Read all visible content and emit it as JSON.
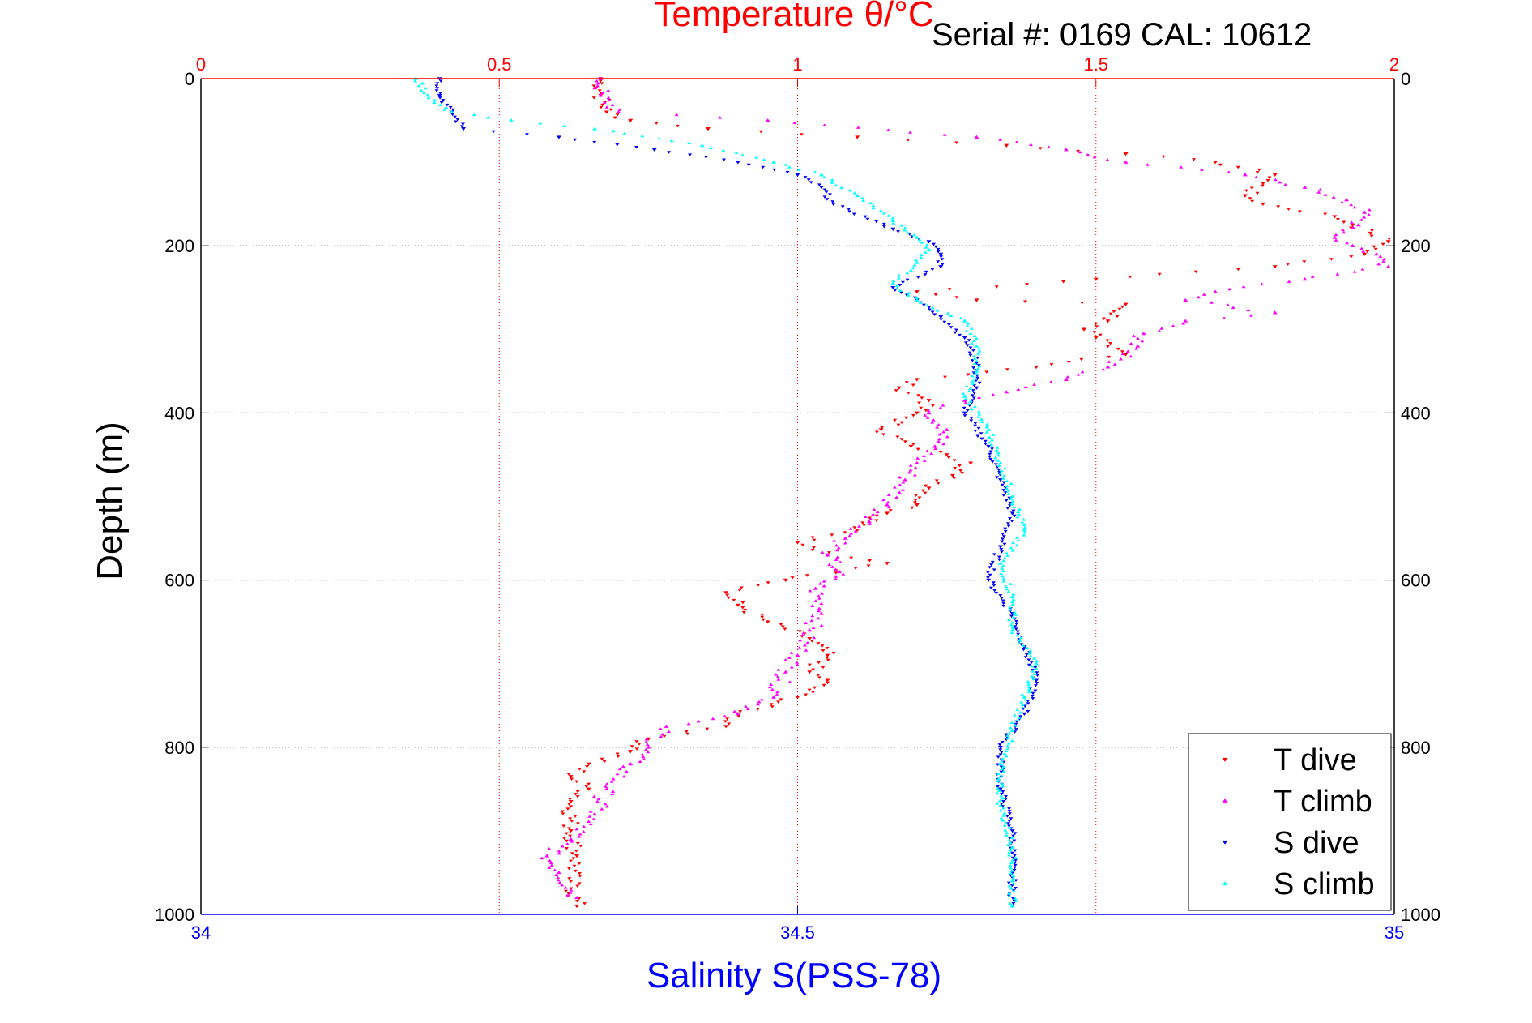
{
  "chart_data": {
    "type": "scatter",
    "title": "Temperature θ/°C",
    "annotation": "Serial #: 0169 CAL: 10612",
    "ylabel": "Depth (m)",
    "xlabel_bottom": "Salinity S(PSS-78)",
    "xlabel_top": "Temperature θ/°C",
    "ylim": [
      0,
      1000
    ],
    "y_reversed": true,
    "y_ticks": [
      "0",
      "200",
      "400",
      "600",
      "800",
      "1000"
    ],
    "top_axis": {
      "range": [
        0,
        2
      ],
      "ticks": [
        "0",
        "0.5",
        "1",
        "1.5",
        "2"
      ],
      "color": "#ff0000"
    },
    "bottom_axis": {
      "range": [
        34,
        35
      ],
      "ticks": [
        "34",
        "34.5",
        "35"
      ],
      "color": "#0000ff"
    },
    "grid": true,
    "legend_position": "bottom-right",
    "series": [
      {
        "name": "T dive",
        "axis": "top",
        "marker": "triangle-down",
        "color": "#ff0000",
        "points": [
          [
            0.67,
            0
          ],
          [
            0.67,
            20
          ],
          [
            0.68,
            40
          ],
          [
            0.72,
            50
          ],
          [
            0.85,
            60
          ],
          [
            1.1,
            70
          ],
          [
            1.35,
            80
          ],
          [
            1.55,
            90
          ],
          [
            1.7,
            100
          ],
          [
            1.8,
            115
          ],
          [
            1.78,
            125
          ],
          [
            1.75,
            140
          ],
          [
            1.78,
            150
          ],
          [
            1.9,
            165
          ],
          [
            1.93,
            175
          ],
          [
            1.96,
            185
          ],
          [
            1.99,
            195
          ],
          [
            1.95,
            210
          ],
          [
            1.8,
            225
          ],
          [
            1.5,
            240
          ],
          [
            1.2,
            255
          ],
          [
            1.3,
            265
          ],
          [
            1.55,
            270
          ],
          [
            1.52,
            290
          ],
          [
            1.48,
            300
          ],
          [
            1.5,
            310
          ],
          [
            1.52,
            320
          ],
          [
            1.55,
            330
          ],
          [
            1.4,
            345
          ],
          [
            1.2,
            360
          ],
          [
            1.17,
            370
          ],
          [
            1.22,
            385
          ],
          [
            1.2,
            400
          ],
          [
            1.14,
            420
          ],
          [
            1.19,
            440
          ],
          [
            1.25,
            450
          ],
          [
            1.29,
            460
          ],
          [
            1.26,
            475
          ],
          [
            1.22,
            490
          ],
          [
            1.2,
            510
          ],
          [
            1.15,
            520
          ],
          [
            1.1,
            540
          ],
          [
            1.0,
            555
          ],
          [
            1.05,
            570
          ],
          [
            1.15,
            580
          ],
          [
            0.98,
            600
          ],
          [
            0.88,
            615
          ],
          [
            0.9,
            630
          ],
          [
            0.95,
            650
          ],
          [
            1.02,
            670
          ],
          [
            1.05,
            690
          ],
          [
            1.02,
            710
          ],
          [
            1.05,
            720
          ],
          [
            1.0,
            740
          ],
          [
            0.9,
            760
          ],
          [
            0.88,
            775
          ],
          [
            0.75,
            790
          ],
          [
            0.72,
            805
          ],
          [
            0.65,
            820
          ],
          [
            0.62,
            835
          ],
          [
            0.65,
            850
          ],
          [
            0.62,
            865
          ],
          [
            0.62,
            900
          ],
          [
            0.63,
            930
          ],
          [
            0.62,
            960
          ],
          [
            0.63,
            990
          ]
        ]
      },
      {
        "name": "T climb",
        "axis": "top",
        "marker": "triangle-up",
        "color": "#ff00ff",
        "points": [
          [
            0.67,
            0
          ],
          [
            0.67,
            20
          ],
          [
            0.7,
            40
          ],
          [
            0.95,
            50
          ],
          [
            1.3,
            70
          ],
          [
            1.45,
            85
          ],
          [
            1.55,
            100
          ],
          [
            1.75,
            115
          ],
          [
            1.85,
            130
          ],
          [
            1.92,
            145
          ],
          [
            1.95,
            160
          ],
          [
            1.94,
            175
          ],
          [
            1.9,
            190
          ],
          [
            1.93,
            200
          ],
          [
            1.97,
            210
          ],
          [
            1.99,
            225
          ],
          [
            1.85,
            240
          ],
          [
            1.7,
            255
          ],
          [
            1.65,
            265
          ],
          [
            1.8,
            280
          ],
          [
            1.65,
            290
          ],
          [
            1.58,
            305
          ],
          [
            1.57,
            320
          ],
          [
            1.52,
            345
          ],
          [
            1.45,
            360
          ],
          [
            1.35,
            375
          ],
          [
            1.28,
            385
          ],
          [
            1.22,
            400
          ],
          [
            1.25,
            420
          ],
          [
            1.23,
            440
          ],
          [
            1.2,
            460
          ],
          [
            1.18,
            480
          ],
          [
            1.15,
            510
          ],
          [
            1.12,
            530
          ],
          [
            1.08,
            550
          ],
          [
            1.05,
            570
          ],
          [
            1.07,
            590
          ],
          [
            1.03,
            610
          ],
          [
            1.04,
            640
          ],
          [
            1.02,
            660
          ],
          [
            1.0,
            690
          ],
          [
            0.98,
            710
          ],
          [
            0.96,
            740
          ],
          [
            0.9,
            760
          ],
          [
            0.78,
            775
          ],
          [
            0.75,
            800
          ],
          [
            0.72,
            820
          ],
          [
            0.68,
            850
          ],
          [
            0.66,
            880
          ],
          [
            0.62,
            910
          ],
          [
            0.58,
            930
          ],
          [
            0.6,
            950
          ],
          [
            0.63,
            980
          ]
        ]
      },
      {
        "name": "S dive",
        "axis": "bottom",
        "marker": "triangle-down",
        "color": "#0000ff",
        "points": [
          [
            34.2,
            0
          ],
          [
            34.2,
            20
          ],
          [
            34.21,
            40
          ],
          [
            34.22,
            60
          ],
          [
            34.3,
            70
          ],
          [
            34.38,
            85
          ],
          [
            34.45,
            100
          ],
          [
            34.5,
            115
          ],
          [
            34.52,
            130
          ],
          [
            34.53,
            150
          ],
          [
            34.58,
            180
          ],
          [
            34.61,
            195
          ],
          [
            34.62,
            210
          ],
          [
            34.62,
            225
          ],
          [
            34.58,
            250
          ],
          [
            34.6,
            265
          ],
          [
            34.62,
            285
          ],
          [
            34.64,
            310
          ],
          [
            34.65,
            340
          ],
          [
            34.65,
            370
          ],
          [
            34.64,
            400
          ],
          [
            34.66,
            440
          ],
          [
            34.67,
            480
          ],
          [
            34.68,
            520
          ],
          [
            34.67,
            560
          ],
          [
            34.66,
            600
          ],
          [
            34.68,
            640
          ],
          [
            34.69,
            680
          ],
          [
            34.7,
            720
          ],
          [
            34.69,
            760
          ],
          [
            34.67,
            800
          ],
          [
            34.67,
            850
          ],
          [
            34.68,
            900
          ],
          [
            34.68,
            950
          ],
          [
            34.68,
            990
          ]
        ]
      },
      {
        "name": "S climb",
        "axis": "bottom",
        "marker": "triangle-up",
        "color": "#00ffff",
        "points": [
          [
            34.18,
            0
          ],
          [
            34.19,
            20
          ],
          [
            34.21,
            40
          ],
          [
            34.26,
            50
          ],
          [
            34.33,
            60
          ],
          [
            34.42,
            80
          ],
          [
            34.48,
            100
          ],
          [
            34.52,
            115
          ],
          [
            34.55,
            140
          ],
          [
            34.58,
            170
          ],
          [
            34.6,
            190
          ],
          [
            34.61,
            205
          ],
          [
            34.6,
            220
          ],
          [
            34.58,
            245
          ],
          [
            34.6,
            265
          ],
          [
            34.64,
            290
          ],
          [
            34.65,
            320
          ],
          [
            34.65,
            350
          ],
          [
            34.64,
            380
          ],
          [
            34.66,
            420
          ],
          [
            34.67,
            460
          ],
          [
            34.68,
            500
          ],
          [
            34.69,
            540
          ],
          [
            34.67,
            580
          ],
          [
            34.68,
            620
          ],
          [
            34.68,
            660
          ],
          [
            34.7,
            700
          ],
          [
            34.69,
            740
          ],
          [
            34.68,
            780
          ],
          [
            34.67,
            820
          ],
          [
            34.67,
            870
          ],
          [
            34.68,
            920
          ],
          [
            34.68,
            960
          ],
          [
            34.68,
            990
          ]
        ]
      }
    ]
  }
}
